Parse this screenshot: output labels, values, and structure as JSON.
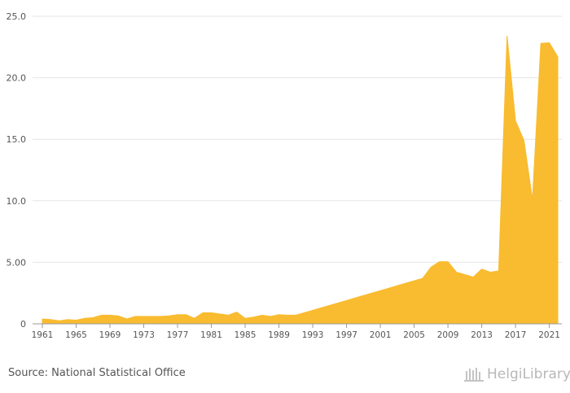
{
  "source": "Source: National Statistical Office",
  "brand": {
    "name": "HelgiLibrary"
  },
  "chart_data": {
    "type": "area",
    "color": "#f9bb2f",
    "y_ticks": [
      "0",
      "5.00",
      "10.0",
      "15.0",
      "20.0",
      "25.0"
    ],
    "ylim": [
      0,
      25
    ],
    "x_ticks": [
      1961,
      1965,
      1969,
      1973,
      1977,
      1981,
      1985,
      1989,
      1993,
      1997,
      2001,
      2005,
      2009,
      2013,
      2017,
      2021
    ],
    "xlim": [
      1961,
      2022
    ],
    "grid": true,
    "x": [
      1961,
      1962,
      1963,
      1964,
      1965,
      1966,
      1967,
      1968,
      1969,
      1970,
      1971,
      1972,
      1973,
      1974,
      1975,
      1976,
      1977,
      1978,
      1979,
      1980,
      1981,
      1982,
      1983,
      1984,
      1985,
      1986,
      1987,
      1988,
      1989,
      1990,
      1991,
      1992,
      1993,
      1994,
      1995,
      1996,
      1997,
      1998,
      1999,
      2000,
      2001,
      2002,
      2003,
      2004,
      2005,
      2006,
      2007,
      2008,
      2009,
      2010,
      2011,
      2012,
      2013,
      2014,
      2015,
      2016,
      2017,
      2018,
      2019,
      2020,
      2021,
      2022
    ],
    "values": [
      0.4,
      0.35,
      0.25,
      0.35,
      0.3,
      0.45,
      0.5,
      0.7,
      0.7,
      0.65,
      0.4,
      0.6,
      0.6,
      0.6,
      0.6,
      0.65,
      0.75,
      0.75,
      0.45,
      0.9,
      0.9,
      0.8,
      0.7,
      0.95,
      0.45,
      0.55,
      0.7,
      0.6,
      0.75,
      0.7,
      0.7,
      0.9,
      1.1,
      1.3,
      1.5,
      1.7,
      1.9,
      2.1,
      2.3,
      2.5,
      2.7,
      2.9,
      3.1,
      3.3,
      3.5,
      3.7,
      4.6,
      5.05,
      5.05,
      4.2,
      4.0,
      3.8,
      4.45,
      4.2,
      4.3,
      23.4,
      16.5,
      14.9,
      10.1,
      22.8,
      22.85,
      21.7
    ]
  }
}
